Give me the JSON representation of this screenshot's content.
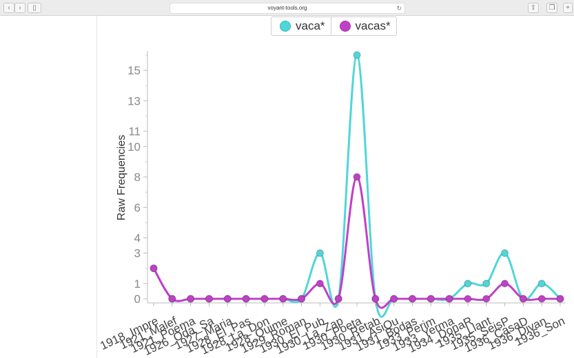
{
  "browser": {
    "url": "voyant-tools.org"
  },
  "legend": [
    {
      "label": "vaca*",
      "color": "#4fd6d8"
    },
    {
      "label": "vacas*",
      "color": "#c040c8"
    }
  ],
  "chart_data": {
    "type": "line",
    "ylabel": "Raw Frequencies",
    "ylim": [
      0,
      16.5
    ],
    "yticks": [
      0,
      1,
      3,
      4,
      6,
      8,
      10,
      11,
      13,
      15
    ],
    "grid": false,
    "legend_position": "top",
    "categories": [
      "1918_Impre",
      "1921_Malef",
      "1921_Poema",
      "1926_Oda_Sa",
      "1927_Maria",
      "1928_El_Pas",
      "1928_La_Don",
      "1928_Quime",
      "1929_Roman",
      "1930_El_Pub",
      "1930_La_Zap",
      "1930_Poeta",
      "1930_Retab",
      "1931_AsiQu",
      "1931_Bodas",
      "1933_Perim",
      "1933_Yerma",
      "1934_DonaR",
      "1935_Llant",
      "1935_SeisP",
      "1936_CasaD",
      "1936_Divan",
      "1936_Son"
    ],
    "series": [
      {
        "name": "vaca*",
        "color": "#4fd6d8",
        "values": [
          2,
          0,
          0,
          0,
          0,
          0,
          0,
          0,
          0,
          3,
          0,
          16,
          0,
          0,
          0,
          0,
          0,
          1,
          1,
          3,
          0,
          1,
          0
        ]
      },
      {
        "name": "vacas*",
        "color": "#c040c8",
        "values": [
          2,
          0,
          0,
          0,
          0,
          0,
          0,
          0,
          0,
          1,
          0,
          8,
          0,
          0,
          0,
          0,
          0,
          0,
          0,
          1,
          0,
          0,
          0
        ]
      }
    ]
  }
}
